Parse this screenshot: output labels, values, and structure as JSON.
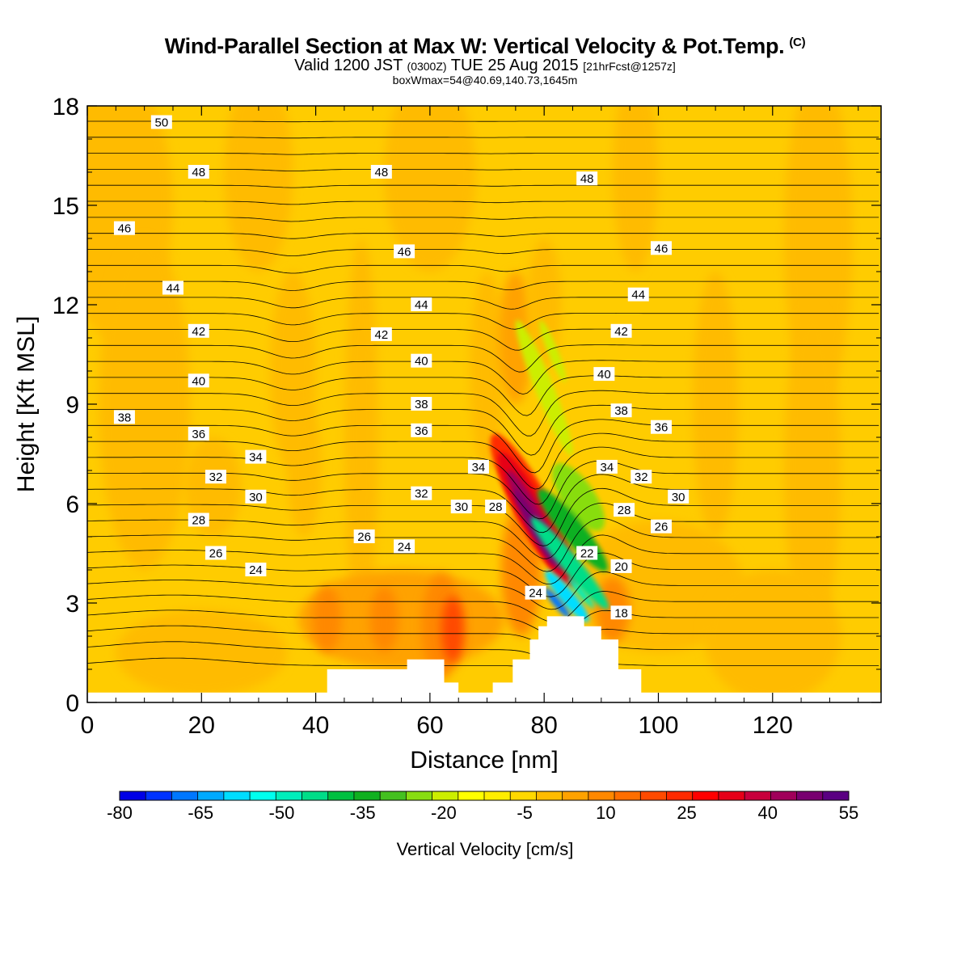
{
  "titles": {
    "main": "Wind-Parallel Section at Max W: Vertical Velocity & Pot.Temp.",
    "copyright": "(C)",
    "valid_prefix": "Valid 1200 JST",
    "valid_utc": "(0300Z)",
    "valid_date": "TUE 25 Aug 2015",
    "forecast": "[21hrFcst@1257z]",
    "box_info": "boxWmax=54@40.69,140.73,1645m"
  },
  "colors": {
    "background_fill": "#FFCC00",
    "contour_line": "#000000",
    "terrain": "#FFFFFF"
  },
  "chart_data": {
    "type": "heatmap",
    "title": "Wind-Parallel Section at Max W: Vertical Velocity & Pot.Temp.",
    "xlabel": "Distance [nm]",
    "ylabel": "Height [Kft MSL]",
    "xlim": [
      0,
      139
    ],
    "ylim": [
      0,
      18
    ],
    "x_ticks": [
      0,
      20,
      40,
      60,
      80,
      100,
      120
    ],
    "y_ticks": [
      0,
      3,
      6,
      9,
      12,
      15,
      18
    ],
    "colorbar": {
      "label": "Vertical Velocity [cm/s]",
      "min": -80,
      "max": 55,
      "tick_values": [
        -80,
        -65,
        -50,
        -35,
        -20,
        -5,
        10,
        25,
        40,
        55
      ],
      "colors": [
        "#0000E6",
        "#0033FF",
        "#0077FF",
        "#00AAFF",
        "#00DDFF",
        "#00FFEE",
        "#00EEBB",
        "#00DD88",
        "#00C040",
        "#10B020",
        "#44C020",
        "#88DD11",
        "#CCEE00",
        "#FFFF00",
        "#FFEE00",
        "#FFD800",
        "#FFBB00",
        "#FFA200",
        "#FF8800",
        "#FF6E00",
        "#FF4A00",
        "#FF2A00",
        "#FF0000",
        "#E60018",
        "#C8003C",
        "#A0005A",
        "#780070",
        "#5A0082"
      ]
    },
    "theta_contour_labels": [
      {
        "value": "50",
        "x": 13,
        "y": 17.5
      },
      {
        "value": "48",
        "x": 19.5,
        "y": 16.0
      },
      {
        "value": "48",
        "x": 51.5,
        "y": 16.0
      },
      {
        "value": "48",
        "x": 87.5,
        "y": 15.8
      },
      {
        "value": "46",
        "x": 6.5,
        "y": 14.3
      },
      {
        "value": "46",
        "x": 55.5,
        "y": 13.6
      },
      {
        "value": "46",
        "x": 100.5,
        "y": 13.7
      },
      {
        "value": "44",
        "x": 15.0,
        "y": 12.5
      },
      {
        "value": "44",
        "x": 58.5,
        "y": 12.0
      },
      {
        "value": "44",
        "x": 96.5,
        "y": 12.3
      },
      {
        "value": "42",
        "x": 19.5,
        "y": 11.2
      },
      {
        "value": "42",
        "x": 51.5,
        "y": 11.1
      },
      {
        "value": "42",
        "x": 93.5,
        "y": 11.2
      },
      {
        "value": "40",
        "x": 19.5,
        "y": 9.7
      },
      {
        "value": "40",
        "x": 58.5,
        "y": 10.3
      },
      {
        "value": "40",
        "x": 90.5,
        "y": 9.9
      },
      {
        "value": "38",
        "x": 6.5,
        "y": 8.6
      },
      {
        "value": "38",
        "x": 58.5,
        "y": 9.0
      },
      {
        "value": "38",
        "x": 93.5,
        "y": 8.8
      },
      {
        "value": "36",
        "x": 19.5,
        "y": 8.1
      },
      {
        "value": "36",
        "x": 58.5,
        "y": 8.2
      },
      {
        "value": "36",
        "x": 100.5,
        "y": 8.3
      },
      {
        "value": "34",
        "x": 29.5,
        "y": 7.4
      },
      {
        "value": "34",
        "x": 68.5,
        "y": 7.1
      },
      {
        "value": "34",
        "x": 91.0,
        "y": 7.1
      },
      {
        "value": "32",
        "x": 22.5,
        "y": 6.8
      },
      {
        "value": "32",
        "x": 58.5,
        "y": 6.3
      },
      {
        "value": "32",
        "x": 97.0,
        "y": 6.8
      },
      {
        "value": "30",
        "x": 29.5,
        "y": 6.2
      },
      {
        "value": "30",
        "x": 65.5,
        "y": 5.9
      },
      {
        "value": "30",
        "x": 103.5,
        "y": 6.2
      },
      {
        "value": "28",
        "x": 19.5,
        "y": 5.5
      },
      {
        "value": "28",
        "x": 71.5,
        "y": 5.9
      },
      {
        "value": "28",
        "x": 94.0,
        "y": 5.8
      },
      {
        "value": "26",
        "x": 48.5,
        "y": 5.0
      },
      {
        "value": "26",
        "x": 22.5,
        "y": 4.5
      },
      {
        "value": "26",
        "x": 100.5,
        "y": 5.3
      },
      {
        "value": "24",
        "x": 55.5,
        "y": 4.7
      },
      {
        "value": "24",
        "x": 29.5,
        "y": 4.0
      },
      {
        "value": "24",
        "x": 78.5,
        "y": 3.3
      },
      {
        "value": "22",
        "x": 87.5,
        "y": 4.5
      },
      {
        "value": "20",
        "x": 93.5,
        "y": 4.1
      },
      {
        "value": "18",
        "x": 93.5,
        "y": 2.7
      }
    ]
  }
}
